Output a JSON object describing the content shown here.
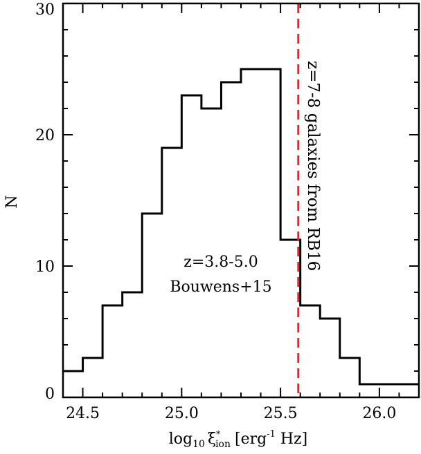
{
  "chart_data": {
    "type": "histogram",
    "bin_edges": [
      24.4,
      24.5,
      24.6,
      24.7,
      24.8,
      24.9,
      25.0,
      25.1,
      25.2,
      25.3,
      25.4,
      25.5,
      25.6,
      25.7,
      25.8,
      25.9,
      26.0,
      26.1,
      26.2
    ],
    "counts": [
      2,
      3,
      7,
      8,
      14,
      19,
      23,
      22,
      24,
      25,
      25,
      12,
      7,
      6,
      3,
      1,
      1,
      1
    ],
    "xlim": [
      24.4,
      26.2
    ],
    "ylim": [
      0,
      30
    ],
    "x_ticks": [
      24.5,
      25.0,
      25.5,
      26.0
    ],
    "x_tick_labels": [
      "24.5",
      "25.0",
      "25.5",
      "26.0"
    ],
    "y_ticks": [
      0,
      10,
      20,
      30
    ],
    "y_tick_labels": [
      "0",
      "10",
      "20",
      "30"
    ],
    "xlabel": {
      "pre": "log",
      "sub": "10",
      "xi": "ξ",
      "xi_sup": "*",
      "xi_sub": "ion",
      "units_pre": "[erg",
      "units_sup": "-1",
      "units_post": " Hz]"
    },
    "ylabel": "N",
    "vline": {
      "x": 25.59,
      "color": "#e0262f",
      "style": "dashed",
      "label": "z=7-8 galaxies from RB16"
    },
    "annotation": {
      "line1": "z=3.8-5.0",
      "line2": "Bouwens+15"
    },
    "line_color": "#000000"
  }
}
